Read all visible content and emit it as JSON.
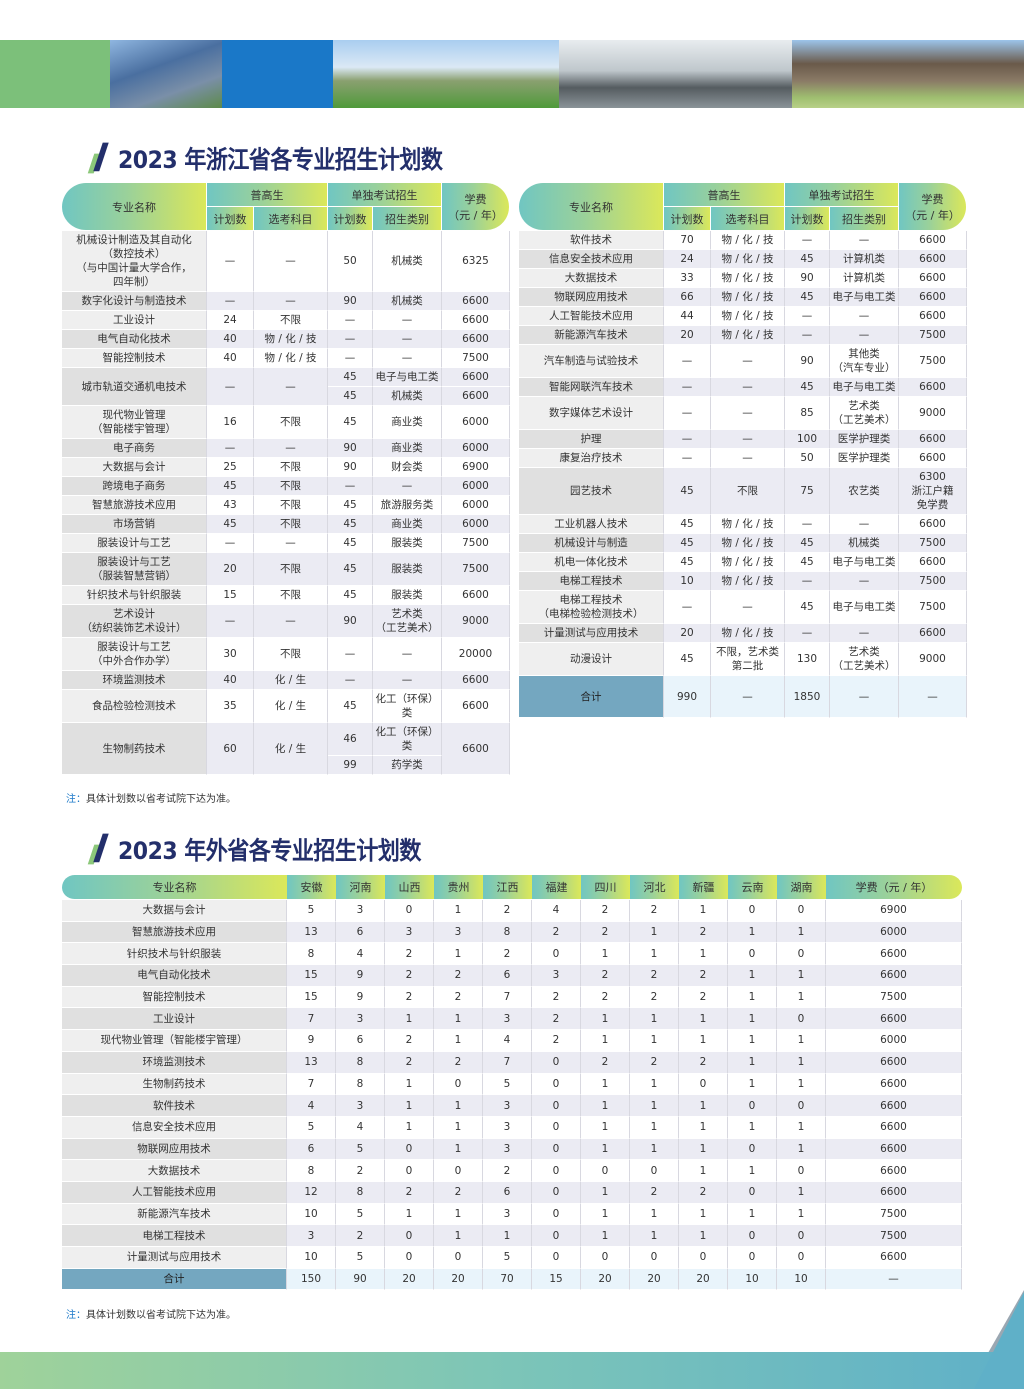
{
  "colors": {
    "accent_green": "#7cc07a",
    "accent_blue": "#1a78c8",
    "title_navy": "#232f6b",
    "total_bg": "#74a7c0"
  },
  "zhejiang": {
    "title": "2023 年浙江省各专业招生计划数",
    "headers": {
      "name": "专业名称",
      "pg": "普高生",
      "dk": "单独考试招生",
      "fee": "学费",
      "fee_unit": "（元 / 年）",
      "plan": "计划数",
      "subjects": "选考科目",
      "category": "招生类别"
    },
    "left_rows": [
      {
        "name": "机械设计制造及其自动化\n（数控技术）\n（与中国计量大学合作，\n四年制）",
        "pg_plan": "—",
        "pg_subjects": "—",
        "sub": [
          {
            "plan": "50",
            "category": "机械类"
          }
        ],
        "fee": "6325"
      },
      {
        "name": "数字化设计与制造技术",
        "pg_plan": "—",
        "pg_subjects": "—",
        "sub": [
          {
            "plan": "90",
            "category": "机械类"
          }
        ],
        "fee": "6600"
      },
      {
        "name": "工业设计",
        "pg_plan": "24",
        "pg_subjects": "不限",
        "sub": [
          {
            "plan": "—",
            "category": "—"
          }
        ],
        "fee": "6600"
      },
      {
        "name": "电气自动化技术",
        "pg_plan": "40",
        "pg_subjects": "物 / 化 / 技",
        "sub": [
          {
            "plan": "—",
            "category": "—"
          }
        ],
        "fee": "6600"
      },
      {
        "name": "智能控制技术",
        "pg_plan": "40",
        "pg_subjects": "物 / 化 / 技",
        "sub": [
          {
            "plan": "—",
            "category": "—"
          }
        ],
        "fee": "7500"
      },
      {
        "name": "城市轨道交通机电技术",
        "pg_plan": "—",
        "pg_subjects": "—",
        "sub": [
          {
            "plan": "45",
            "category": "电子与电工类",
            "fee": "6600"
          },
          {
            "plan": "45",
            "category": "机械类",
            "fee": "6600"
          }
        ]
      },
      {
        "name": "现代物业管理\n（智能楼宇管理）",
        "pg_plan": "16",
        "pg_subjects": "不限",
        "sub": [
          {
            "plan": "45",
            "category": "商业类"
          }
        ],
        "fee": "6000"
      },
      {
        "name": "电子商务",
        "pg_plan": "—",
        "pg_subjects": "—",
        "sub": [
          {
            "plan": "90",
            "category": "商业类"
          }
        ],
        "fee": "6000"
      },
      {
        "name": "大数据与会计",
        "pg_plan": "25",
        "pg_subjects": "不限",
        "sub": [
          {
            "plan": "90",
            "category": "财会类"
          }
        ],
        "fee": "6900"
      },
      {
        "name": "跨境电子商务",
        "pg_plan": "45",
        "pg_subjects": "不限",
        "sub": [
          {
            "plan": "—",
            "category": "—"
          }
        ],
        "fee": "6000"
      },
      {
        "name": "智慧旅游技术应用",
        "pg_plan": "43",
        "pg_subjects": "不限",
        "sub": [
          {
            "plan": "45",
            "category": "旅游服务类"
          }
        ],
        "fee": "6000"
      },
      {
        "name": "市场营销",
        "pg_plan": "45",
        "pg_subjects": "不限",
        "sub": [
          {
            "plan": "45",
            "category": "商业类"
          }
        ],
        "fee": "6000"
      },
      {
        "name": "服装设计与工艺",
        "pg_plan": "—",
        "pg_subjects": "—",
        "sub": [
          {
            "plan": "45",
            "category": "服装类"
          }
        ],
        "fee": "7500"
      },
      {
        "name": "服装设计与工艺\n（服装智慧营销）",
        "pg_plan": "20",
        "pg_subjects": "不限",
        "sub": [
          {
            "plan": "45",
            "category": "服装类"
          }
        ],
        "fee": "7500"
      },
      {
        "name": "针织技术与针织服装",
        "pg_plan": "15",
        "pg_subjects": "不限",
        "sub": [
          {
            "plan": "45",
            "category": "服装类"
          }
        ],
        "fee": "6600"
      },
      {
        "name": "艺术设计\n（纺织装饰艺术设计）",
        "pg_plan": "—",
        "pg_subjects": "—",
        "sub": [
          {
            "plan": "90",
            "category": "艺术类\n（工艺美术）"
          }
        ],
        "fee": "9000"
      },
      {
        "name": "服装设计与工艺\n（中外合作办学）",
        "pg_plan": "30",
        "pg_subjects": "不限",
        "sub": [
          {
            "plan": "—",
            "category": "—"
          }
        ],
        "fee": "20000"
      },
      {
        "name": "环境监测技术",
        "pg_plan": "40",
        "pg_subjects": "化 / 生",
        "sub": [
          {
            "plan": "—",
            "category": "—"
          }
        ],
        "fee": "6600"
      },
      {
        "name": "食品检验检测技术",
        "pg_plan": "35",
        "pg_subjects": "化 / 生",
        "sub": [
          {
            "plan": "45",
            "category": "化工（环保）类"
          }
        ],
        "fee": "6600"
      },
      {
        "name": "生物制药技术",
        "pg_plan": "60",
        "pg_subjects": "化 / 生",
        "sub": [
          {
            "plan": "46",
            "category": "化工（环保）类"
          },
          {
            "plan": "99",
            "category": "药学类"
          }
        ],
        "fee": "6600"
      }
    ],
    "right_rows": [
      {
        "name": "软件技术",
        "pg_plan": "70",
        "pg_subjects": "物 / 化 / 技",
        "sub": [
          {
            "plan": "—",
            "category": "—"
          }
        ],
        "fee": "6600"
      },
      {
        "name": "信息安全技术应用",
        "pg_plan": "24",
        "pg_subjects": "物 / 化 / 技",
        "sub": [
          {
            "plan": "45",
            "category": "计算机类"
          }
        ],
        "fee": "6600"
      },
      {
        "name": "大数据技术",
        "pg_plan": "33",
        "pg_subjects": "物 / 化 / 技",
        "sub": [
          {
            "plan": "90",
            "category": "计算机类"
          }
        ],
        "fee": "6600"
      },
      {
        "name": "物联网应用技术",
        "pg_plan": "66",
        "pg_subjects": "物 / 化 / 技",
        "sub": [
          {
            "plan": "45",
            "category": "电子与电工类"
          }
        ],
        "fee": "6600"
      },
      {
        "name": "人工智能技术应用",
        "pg_plan": "44",
        "pg_subjects": "物 / 化 / 技",
        "sub": [
          {
            "plan": "—",
            "category": "—"
          }
        ],
        "fee": "6600"
      },
      {
        "name": "新能源汽车技术",
        "pg_plan": "20",
        "pg_subjects": "物 / 化 / 技",
        "sub": [
          {
            "plan": "—",
            "category": "—"
          }
        ],
        "fee": "7500"
      },
      {
        "name": "汽车制造与试验技术",
        "pg_plan": "—",
        "pg_subjects": "—",
        "sub": [
          {
            "plan": "90",
            "category": "其他类\n（汽车专业）"
          }
        ],
        "fee": "7500"
      },
      {
        "name": "智能网联汽车技术",
        "pg_plan": "—",
        "pg_subjects": "—",
        "sub": [
          {
            "plan": "45",
            "category": "电子与电工类"
          }
        ],
        "fee": "6600"
      },
      {
        "name": "数字媒体艺术设计",
        "pg_plan": "—",
        "pg_subjects": "—",
        "sub": [
          {
            "plan": "85",
            "category": "艺术类\n（工艺美术）"
          }
        ],
        "fee": "9000"
      },
      {
        "name": "护理",
        "pg_plan": "—",
        "pg_subjects": "—",
        "sub": [
          {
            "plan": "100",
            "category": "医学护理类"
          }
        ],
        "fee": "6600"
      },
      {
        "name": "康复治疗技术",
        "pg_plan": "—",
        "pg_subjects": "—",
        "sub": [
          {
            "plan": "50",
            "category": "医学护理类"
          }
        ],
        "fee": "6600"
      },
      {
        "name": "园艺技术",
        "pg_plan": "45",
        "pg_subjects": "不限",
        "sub": [
          {
            "plan": "75",
            "category": "农艺类"
          }
        ],
        "fee": "6300\n浙江户籍\n免学费"
      },
      {
        "name": "工业机器人技术",
        "pg_plan": "45",
        "pg_subjects": "物 / 化 / 技",
        "sub": [
          {
            "plan": "—",
            "category": "—"
          }
        ],
        "fee": "6600"
      },
      {
        "name": "机械设计与制造",
        "pg_plan": "45",
        "pg_subjects": "物 / 化 / 技",
        "sub": [
          {
            "plan": "45",
            "category": "机械类"
          }
        ],
        "fee": "7500"
      },
      {
        "name": "机电一体化技术",
        "pg_plan": "45",
        "pg_subjects": "物 / 化 / 技",
        "sub": [
          {
            "plan": "45",
            "category": "电子与电工类"
          }
        ],
        "fee": "6600"
      },
      {
        "name": "电梯工程技术",
        "pg_plan": "10",
        "pg_subjects": "物 / 化 / 技",
        "sub": [
          {
            "plan": "—",
            "category": "—"
          }
        ],
        "fee": "7500"
      },
      {
        "name": "电梯工程技术\n（电梯检验检测技术）",
        "pg_plan": "—",
        "pg_subjects": "—",
        "sub": [
          {
            "plan": "45",
            "category": "电子与电工类"
          }
        ],
        "fee": "7500"
      },
      {
        "name": "计量测试与应用技术",
        "pg_plan": "20",
        "pg_subjects": "物 / 化 / 技",
        "sub": [
          {
            "plan": "—",
            "category": "—"
          }
        ],
        "fee": "6600"
      },
      {
        "name": "动漫设计",
        "pg_plan": "45",
        "pg_subjects": "不限，艺术类\n第二批",
        "sub": [
          {
            "plan": "130",
            "category": "艺术类\n（工艺美术）"
          }
        ],
        "fee": "9000"
      }
    ],
    "total": {
      "name": "合计",
      "pg_plan": "990",
      "pg_subjects": "—",
      "sub": [
        {
          "plan": "1850",
          "category": "—"
        }
      ],
      "fee": "—"
    },
    "note_label": "注：",
    "note": "具体计划数以省考试院下达为准。"
  },
  "other": {
    "title": "2023 年外省各专业招生计划数",
    "headers": [
      "专业名称",
      "安徽",
      "河南",
      "山西",
      "贵州",
      "江西",
      "福建",
      "四川",
      "河北",
      "新疆",
      "云南",
      "湖南",
      "学费（元 / 年）"
    ],
    "rows": [
      [
        "大数据与会计",
        "5",
        "3",
        "0",
        "1",
        "2",
        "4",
        "2",
        "2",
        "1",
        "0",
        "0",
        "6900"
      ],
      [
        "智慧旅游技术应用",
        "13",
        "6",
        "3",
        "3",
        "8",
        "2",
        "2",
        "1",
        "2",
        "1",
        "1",
        "6000"
      ],
      [
        "针织技术与针织服装",
        "8",
        "4",
        "2",
        "1",
        "2",
        "0",
        "1",
        "1",
        "1",
        "0",
        "0",
        "6600"
      ],
      [
        "电气自动化技术",
        "15",
        "9",
        "2",
        "2",
        "6",
        "3",
        "2",
        "2",
        "2",
        "1",
        "1",
        "6600"
      ],
      [
        "智能控制技术",
        "15",
        "9",
        "2",
        "2",
        "7",
        "2",
        "2",
        "2",
        "2",
        "1",
        "1",
        "7500"
      ],
      [
        "工业设计",
        "7",
        "3",
        "1",
        "1",
        "3",
        "2",
        "1",
        "1",
        "1",
        "1",
        "0",
        "6600"
      ],
      [
        "现代物业管理（智能楼宇管理）",
        "9",
        "6",
        "2",
        "1",
        "4",
        "2",
        "1",
        "1",
        "1",
        "1",
        "1",
        "6000"
      ],
      [
        "环境监测技术",
        "13",
        "8",
        "2",
        "2",
        "7",
        "0",
        "2",
        "2",
        "2",
        "1",
        "1",
        "6600"
      ],
      [
        "生物制药技术",
        "7",
        "8",
        "1",
        "0",
        "5",
        "0",
        "1",
        "1",
        "0",
        "1",
        "1",
        "6600"
      ],
      [
        "软件技术",
        "4",
        "3",
        "1",
        "1",
        "3",
        "0",
        "1",
        "1",
        "1",
        "0",
        "0",
        "6600"
      ],
      [
        "信息安全技术应用",
        "5",
        "4",
        "1",
        "1",
        "3",
        "0",
        "1",
        "1",
        "1",
        "1",
        "1",
        "6600"
      ],
      [
        "物联网应用技术",
        "6",
        "5",
        "0",
        "1",
        "3",
        "0",
        "1",
        "1",
        "1",
        "0",
        "1",
        "6600"
      ],
      [
        "大数据技术",
        "8",
        "2",
        "0",
        "0",
        "2",
        "0",
        "0",
        "0",
        "1",
        "1",
        "0",
        "6600"
      ],
      [
        "人工智能技术应用",
        "12",
        "8",
        "2",
        "2",
        "6",
        "0",
        "1",
        "2",
        "2",
        "0",
        "1",
        "6600"
      ],
      [
        "新能源汽车技术",
        "10",
        "5",
        "1",
        "1",
        "3",
        "0",
        "1",
        "1",
        "1",
        "1",
        "1",
        "7500"
      ],
      [
        "电梯工程技术",
        "3",
        "2",
        "0",
        "1",
        "1",
        "0",
        "1",
        "1",
        "1",
        "0",
        "0",
        "7500"
      ],
      [
        "计量测试与应用技术",
        "10",
        "5",
        "0",
        "0",
        "5",
        "0",
        "0",
        "0",
        "0",
        "0",
        "0",
        "6600"
      ]
    ],
    "total": [
      "合计",
      "150",
      "90",
      "20",
      "20",
      "70",
      "15",
      "20",
      "20",
      "20",
      "10",
      "10",
      "—"
    ],
    "note_label": "注：",
    "note": "具体计划数以省考试院下达为准。"
  }
}
